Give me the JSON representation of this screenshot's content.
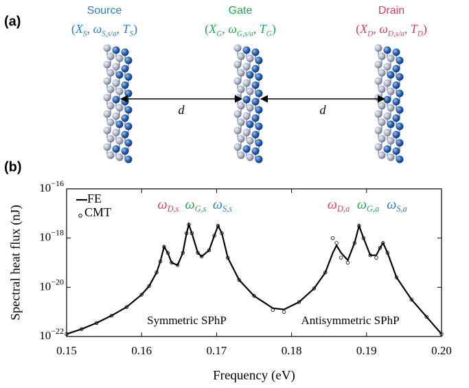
{
  "panel_a": {
    "label": "(a)",
    "terminals": [
      {
        "name": "Source",
        "color": "#2b7fc2",
        "formula": [
          {
            "text": "("
          },
          {
            "text": "X",
            "sub": "S"
          },
          {
            "text": ", "
          },
          {
            "text": "ω",
            "sub": "S,s/a"
          },
          {
            "text": ", "
          },
          {
            "text": "T",
            "sub": "S"
          },
          {
            "text": ")"
          }
        ]
      },
      {
        "name": "Gate",
        "color": "#1faa50",
        "formula": [
          {
            "text": "("
          },
          {
            "text": "X",
            "sub": "G"
          },
          {
            "text": ", "
          },
          {
            "text": "ω",
            "sub": "G,s/a"
          },
          {
            "text": ", "
          },
          {
            "text": "T",
            "sub": "G"
          },
          {
            "text": ")"
          }
        ]
      },
      {
        "name": "Drain",
        "color": "#e23a62",
        "formula": [
          {
            "text": "("
          },
          {
            "text": "X",
            "sub": "D"
          },
          {
            "text": ", "
          },
          {
            "text": "ω",
            "sub": "D,s/a"
          },
          {
            "text": ", "
          },
          {
            "text": "T",
            "sub": "D"
          },
          {
            "text": ")"
          }
        ]
      }
    ],
    "distances": [
      "d",
      "d"
    ]
  },
  "chart_data": {
    "type": "line",
    "panel_label": "(b)",
    "x_label": "Frequency (eV)",
    "y_label": "Spectral heat flux (nJ)",
    "x": [
      0.15,
      0.152,
      0.154,
      0.156,
      0.158,
      0.16,
      0.161,
      0.162,
      0.1625,
      0.163,
      0.1635,
      0.164,
      0.1648,
      0.1655,
      0.166,
      0.1663,
      0.1667,
      0.1675,
      0.168,
      0.169,
      0.1697,
      0.1702,
      0.1707,
      0.1715,
      0.173,
      0.175,
      0.1775,
      0.179,
      0.181,
      0.183,
      0.1845,
      0.1855,
      0.186,
      0.1866,
      0.1875,
      0.1884,
      0.189,
      0.1896,
      0.1905,
      0.1913,
      0.1918,
      0.1922,
      0.1928,
      0.194,
      0.196,
      0.198,
      0.2
    ],
    "series": [
      {
        "name": "FE",
        "color": "#000000",
        "style": "line",
        "values": [
          1.26e-22,
          2e-22,
          3.55e-22,
          7.08e-22,
          1.58e-21,
          5.01e-21,
          1.12e-20,
          3.98e-20,
          1.12e-19,
          4.47e-19,
          2.51e-19,
          1e-19,
          7.94e-20,
          2.51e-19,
          1.58e-18,
          3.55e-18,
          1.58e-18,
          2.51e-19,
          1.78e-19,
          3.16e-19,
          1.26e-18,
          3.16e-18,
          1.58e-18,
          1.58e-19,
          2e-20,
          4.47e-21,
          1.41e-21,
          1.26e-21,
          2.51e-21,
          8.91e-21,
          3.98e-20,
          2.51e-19,
          5.01e-19,
          2.51e-19,
          1.26e-19,
          6.31e-19,
          3.16e-18,
          1e-18,
          2e-19,
          2e-19,
          3.98e-19,
          6.31e-19,
          2.51e-19,
          2.51e-20,
          3.16e-21,
          6.31e-22,
          1.26e-22
        ]
      },
      {
        "name": "CMT",
        "color": "#000000",
        "style": "markers",
        "values": [
          1.26e-22,
          2e-22,
          3.55e-22,
          7.08e-22,
          1.58e-21,
          5.01e-21,
          1.12e-20,
          3.98e-20,
          1.12e-19,
          4.47e-19,
          2.51e-19,
          1e-19,
          7.94e-20,
          2.51e-19,
          1.58e-18,
          3.55e-18,
          1.58e-18,
          2.51e-19,
          1.78e-19,
          3.16e-19,
          1.26e-18,
          3.16e-18,
          1.58e-18,
          1.58e-19,
          2e-20,
          4.47e-21,
          1.2e-21,
          1e-21,
          2.51e-21,
          8.91e-21,
          3.98e-20,
          1e-18,
          6.31e-19,
          1.6e-19,
          1e-19,
          6.31e-19,
          3.16e-18,
          1e-18,
          2e-19,
          1.6e-19,
          3.98e-19,
          6.31e-19,
          2.51e-19,
          2.51e-20,
          3.16e-21,
          6.31e-22,
          1.26e-22
        ]
      }
    ],
    "xlim": [
      0.15,
      0.2
    ],
    "ylim": [
      1e-22,
      1e-16
    ],
    "xticks": [
      0.15,
      0.16,
      0.17,
      0.18,
      0.19,
      {
        "value": 0.2,
        "label": "0.20"
      }
    ],
    "yticks": [
      {
        "value": 1e-22,
        "label": "10−22"
      },
      {
        "value": 1e-20,
        "label": "10−20"
      },
      {
        "value": 1e-18,
        "label": "10−18"
      },
      {
        "value": 1e-16,
        "label": "10−16"
      }
    ],
    "log_y": true,
    "legend": "upper left",
    "annotations": [
      {
        "color": "#e23a62",
        "pieces": [
          {
            "text": "ω",
            "sub": "D,s"
          }
        ]
      },
      {
        "color": "#1faa50",
        "pieces": [
          {
            "text": "ω",
            "sub": "G,s"
          }
        ]
      },
      {
        "color": "#2b7fc2",
        "pieces": [
          {
            "text": "ω",
            "sub": "S,s"
          }
        ]
      },
      {
        "color": "#e23a62",
        "pieces": [
          {
            "text": "ω",
            "sub": "D,a"
          }
        ]
      },
      {
        "color": "#1faa50",
        "pieces": [
          {
            "text": "ω",
            "sub": "G,a"
          }
        ]
      },
      {
        "color": "#2b7fc2",
        "pieces": [
          {
            "text": "ω",
            "sub": "S,a"
          }
        ]
      }
    ],
    "region_labels": [
      "Symmetric SPhP",
      "Antisymmetric SPhP"
    ]
  }
}
